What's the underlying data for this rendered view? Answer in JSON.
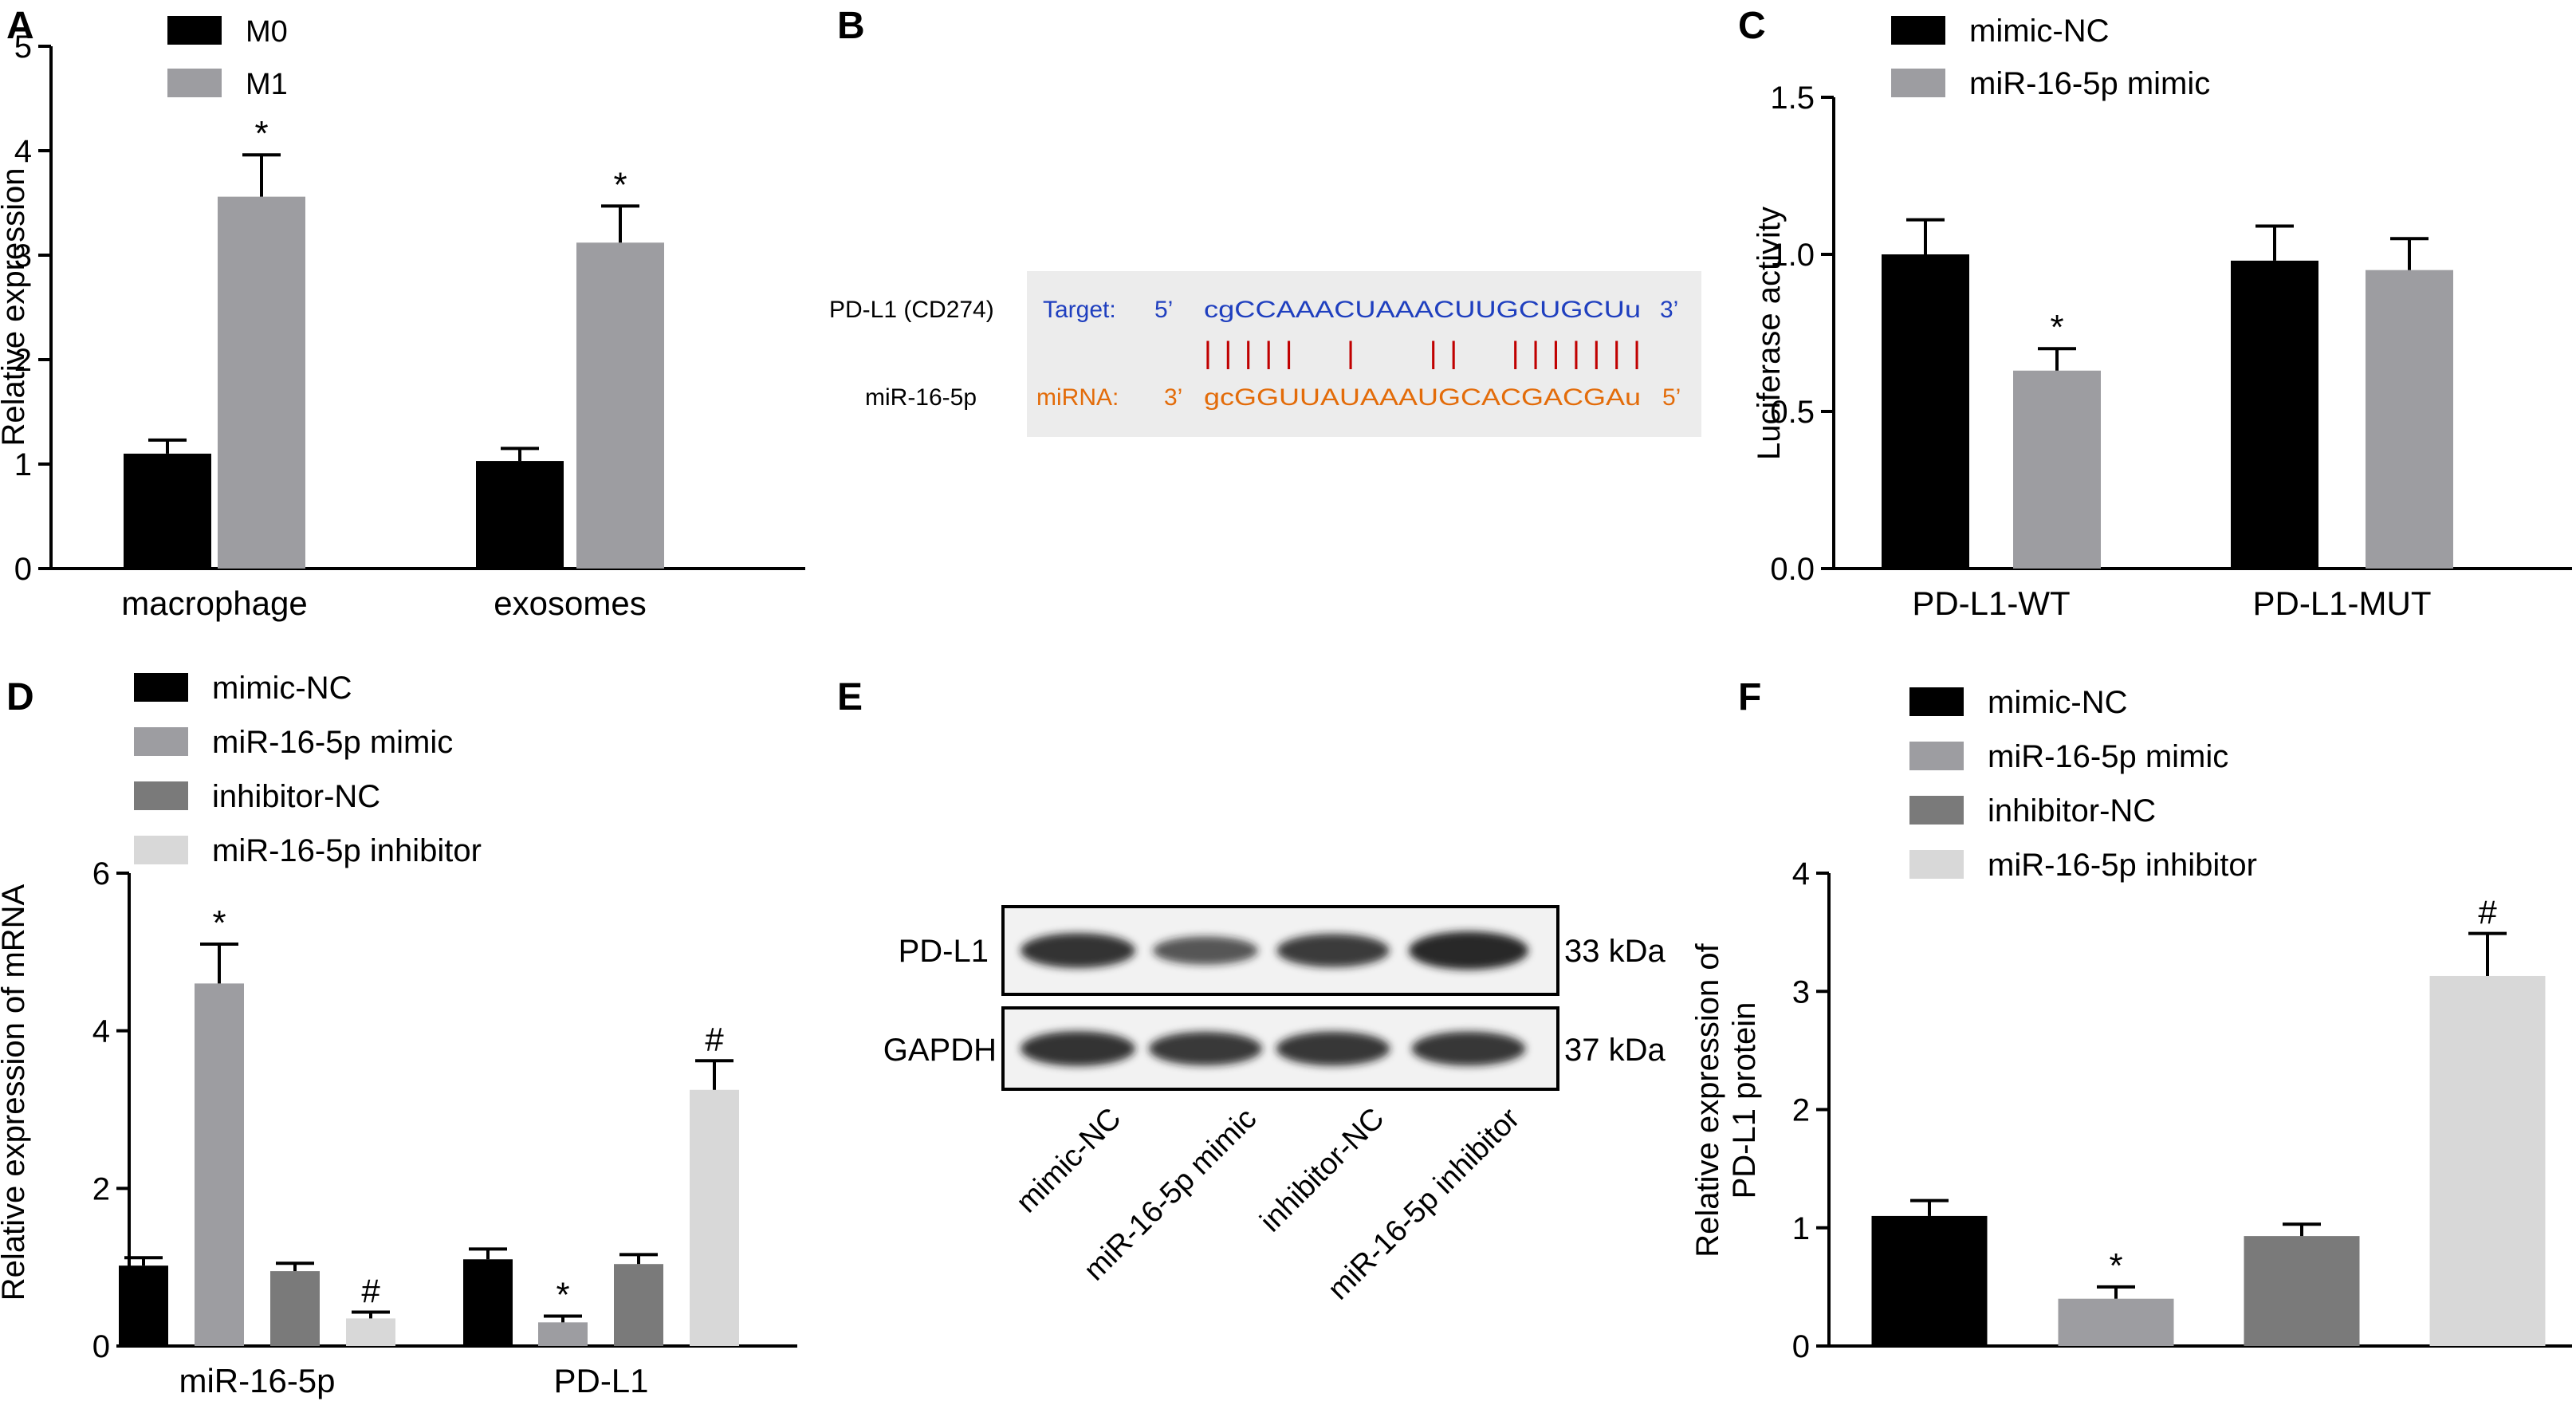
{
  "colors": {
    "black": "#000000",
    "gray1": "#9d9da1",
    "gray2": "#7a7a7a",
    "gray3": "#d8d8d8",
    "target_blue": "#1f3fbf",
    "mirna_orange": "#e36c0a",
    "pair_red": "#c00000",
    "box_bg": "#ececec"
  },
  "panels": {
    "A": {
      "letter": "A"
    },
    "B": {
      "letter": "B"
    },
    "C": {
      "letter": "C"
    },
    "D": {
      "letter": "D"
    },
    "E": {
      "letter": "E"
    },
    "F": {
      "letter": "F"
    }
  },
  "chart_data": [
    {
      "panel": "A",
      "type": "bar",
      "ylabel": "Relative expression",
      "ylim": [
        0,
        5
      ],
      "yticks": [
        "0",
        "1",
        "2",
        "3",
        "4",
        "5"
      ],
      "categories": [
        "macrophage",
        "exosomes"
      ],
      "series": [
        {
          "name": "M0",
          "color": "#000000",
          "values": [
            1.1,
            1.03
          ],
          "errors": [
            0.13,
            0.12
          ],
          "marks": [
            "",
            ""
          ]
        },
        {
          "name": "M1",
          "color": "#9d9da1",
          "values": [
            3.56,
            3.12
          ],
          "errors": [
            0.4,
            0.35
          ],
          "marks": [
            "*",
            "*"
          ]
        }
      ]
    },
    {
      "panel": "C",
      "type": "bar",
      "ylabel": "Luciferase activity",
      "ylim": [
        0,
        1.5
      ],
      "yticks": [
        "0.0",
        "0.5",
        "1.0",
        "1.5"
      ],
      "categories": [
        "PD-L1-WT",
        "PD-L1-MUT"
      ],
      "series": [
        {
          "name": "mimic-NC",
          "color": "#000000",
          "values": [
            1.0,
            0.98
          ],
          "errors": [
            0.11,
            0.11
          ],
          "marks": [
            "",
            ""
          ]
        },
        {
          "name": "miR-16-5p mimic",
          "color": "#9d9da1",
          "values": [
            0.63,
            0.95
          ],
          "errors": [
            0.07,
            0.1
          ],
          "marks": [
            "*",
            ""
          ]
        }
      ]
    },
    {
      "panel": "D",
      "type": "bar",
      "ylabel": "Relative expression  of mRNA",
      "ylim": [
        0,
        6
      ],
      "yticks": [
        "0",
        "2",
        "4",
        "6"
      ],
      "categories": [
        "miR-16-5p",
        "PD-L1"
      ],
      "series": [
        {
          "name": "mimic-NC",
          "color": "#000000",
          "values": [
            1.02,
            1.1
          ],
          "errors": [
            0.1,
            0.13
          ],
          "marks": [
            "",
            ""
          ]
        },
        {
          "name": "miR-16-5p mimic",
          "color": "#9d9da1",
          "values": [
            4.6,
            0.3
          ],
          "errors": [
            0.5,
            0.08
          ],
          "marks": [
            "*",
            "*"
          ]
        },
        {
          "name": "inhibitor-NC",
          "color": "#7a7a7a",
          "values": [
            0.95,
            1.04
          ],
          "errors": [
            0.1,
            0.12
          ],
          "marks": [
            "",
            ""
          ]
        },
        {
          "name": "miR-16-5p inhibitor",
          "color": "#d8d8d8",
          "values": [
            0.35,
            3.25
          ],
          "errors": [
            0.08,
            0.37
          ],
          "marks": [
            "#",
            "#"
          ]
        }
      ]
    },
    {
      "panel": "F",
      "type": "bar",
      "ylabel": [
        "Relative expression of",
        "PD-L1 protein"
      ],
      "ylim": [
        0,
        4
      ],
      "yticks": [
        "0",
        "1",
        "2",
        "3",
        "4"
      ],
      "categories": [
        ""
      ],
      "series": [
        {
          "name": "mimic-NC",
          "color": "#000000",
          "values": [
            1.1
          ],
          "errors": [
            0.13
          ],
          "marks": [
            ""
          ]
        },
        {
          "name": "miR-16-5p mimic",
          "color": "#9d9da1",
          "values": [
            0.4
          ],
          "errors": [
            0.1
          ],
          "marks": [
            "*"
          ]
        },
        {
          "name": "inhibitor-NC",
          "color": "#7a7a7a",
          "values": [
            0.93
          ],
          "errors": [
            0.1
          ],
          "marks": [
            ""
          ]
        },
        {
          "name": "miR-16-5p inhibitor",
          "color": "#d8d8d8",
          "values": [
            3.13
          ],
          "errors": [
            0.36
          ],
          "marks": [
            "#"
          ]
        }
      ]
    }
  ],
  "panel_b": {
    "gene_label": "PD-L1 (CD274)",
    "mirna_label": "miR-16-5p",
    "target_prefix": "Target:",
    "target_5": "5’",
    "target_seq": "cgCCAAACUAAACUUGCUGCUu",
    "target_3": "3’",
    "mirna_prefix": "miRNA:",
    "mirna_3": "3’",
    "mirna_seq": "gcGGUUAUAAAUGCACGACGAu",
    "mirna_5": "5’",
    "pairs": "|||||  |   ||  |||||||"
  },
  "panel_e": {
    "bands": [
      {
        "protein": "PD-L1",
        "size": "33 kDa",
        "intensities": [
          0.85,
          0.55,
          0.78,
          1.0
        ]
      },
      {
        "protein": "GAPDH",
        "size": "37 kDa",
        "intensities": [
          0.85,
          0.8,
          0.82,
          0.82
        ]
      }
    ],
    "lanes": [
      "mimic-NC",
      "miR-16-5p mimic",
      "inhibitor-NC",
      "miR-16-5p inhibitor"
    ]
  }
}
